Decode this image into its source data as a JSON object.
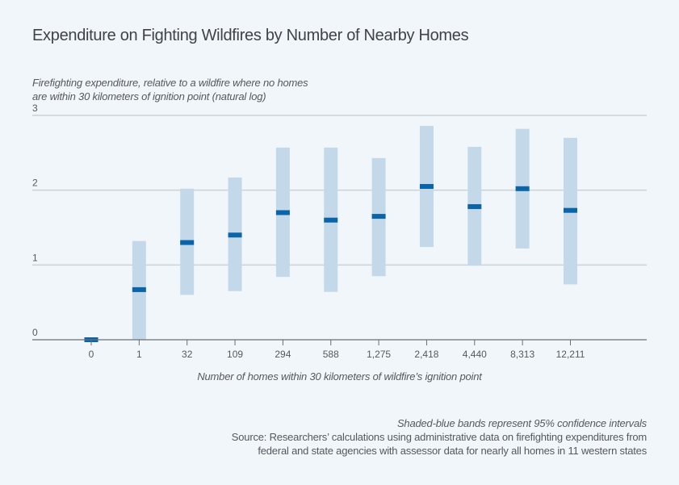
{
  "chart_data": {
    "type": "scatter",
    "title": "Expenditure on Fighting Wildfires by Number of Nearby Homes",
    "ylabel_lines": [
      "Firefighting expenditure, relative to a wildfire where no homes",
      "are within 30 kilometers of ignition point (natural log)"
    ],
    "xlabel": "Number of homes within 30 kilometers of wildfire’s ignition point",
    "categories": [
      "0",
      "1",
      "32",
      "109",
      "294",
      "588",
      "1,275",
      "2,418",
      "4,440",
      "8,313",
      "12,211"
    ],
    "series": [
      {
        "name": "Point estimate",
        "values": [
          0.0,
          0.67,
          1.3,
          1.4,
          1.7,
          1.6,
          1.65,
          2.05,
          1.78,
          2.02,
          1.73
        ]
      },
      {
        "name": "95% CI lower",
        "values": [
          null,
          0.0,
          0.6,
          0.65,
          0.84,
          0.64,
          0.85,
          1.24,
          0.99,
          1.22,
          0.74
        ]
      },
      {
        "name": "95% CI upper",
        "values": [
          null,
          1.32,
          2.02,
          2.17,
          2.57,
          2.57,
          2.43,
          2.86,
          2.58,
          2.82,
          2.7
        ]
      }
    ],
    "ylim": [
      0,
      3
    ],
    "yticks": [
      0,
      1,
      2,
      3
    ],
    "grid": true,
    "colors": {
      "point": "#0b63a8",
      "band": "#c3d9ea",
      "grid": "#cdd1d8",
      "axis": "#6b6f75"
    }
  },
  "notes": {
    "ci_note": "Shaded-blue bands represent 95% confidence intervals",
    "source_line1": "Source: Researchers’ calculations using administrative data on firefighting expenditures from",
    "source_line2": "federal and state agencies with assessor data for nearly all homes in 11 western states"
  }
}
